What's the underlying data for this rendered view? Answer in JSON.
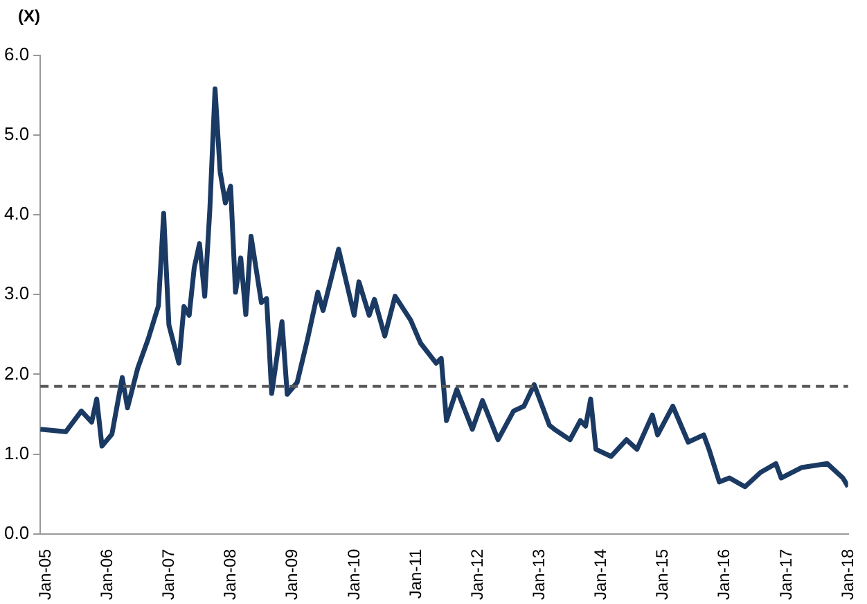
{
  "chart_data": {
    "type": "line",
    "ylabel": "(X)",
    "x": [
      "2005-01",
      "2005-06",
      "2005-09",
      "2005-11",
      "2005-12",
      "2006-01",
      "2006-03",
      "2006-05",
      "2006-06",
      "2006-08",
      "2006-10",
      "2006-12",
      "2007-01",
      "2007-02",
      "2007-04",
      "2007-05",
      "2007-06",
      "2007-07",
      "2007-08",
      "2007-09",
      "2007-10",
      "2007-11",
      "2007-12",
      "2008-01",
      "2008-02",
      "2008-03",
      "2008-04",
      "2008-05",
      "2008-06",
      "2008-08",
      "2008-09",
      "2008-10",
      "2008-12",
      "2009-01",
      "2009-03",
      "2009-05",
      "2009-07",
      "2009-08",
      "2009-11",
      "2010-02",
      "2010-03",
      "2010-05",
      "2010-06",
      "2010-08",
      "2010-10",
      "2011-01",
      "2011-03",
      "2011-06",
      "2011-07",
      "2011-08",
      "2011-10",
      "2012-01",
      "2012-03",
      "2012-06",
      "2012-09",
      "2012-11",
      "2013-01",
      "2013-04",
      "2013-05",
      "2013-08",
      "2013-10",
      "2013-11",
      "2013-12",
      "2014-01",
      "2014-04",
      "2014-07",
      "2014-09",
      "2014-12",
      "2015-01",
      "2015-04",
      "2015-07",
      "2015-10",
      "2015-11",
      "2016-01",
      "2016-03",
      "2016-06",
      "2016-09",
      "2016-12",
      "2017-01",
      "2017-05",
      "2017-10",
      "2018-01",
      "2018-02"
    ],
    "series": [
      {
        "color": "#1b3a63",
        "values": [
          1.31,
          1.28,
          1.54,
          1.4,
          1.69,
          1.1,
          1.25,
          1.96,
          1.58,
          2.08,
          2.44,
          2.86,
          4.02,
          2.62,
          2.14,
          2.85,
          2.74,
          3.34,
          3.64,
          2.98,
          4.06,
          5.58,
          4.54,
          4.15,
          4.36,
          3.03,
          3.46,
          2.75,
          3.73,
          2.9,
          2.95,
          1.76,
          2.66,
          1.75,
          1.9,
          2.44,
          3.03,
          2.8,
          3.57,
          2.74,
          3.16,
          2.74,
          2.94,
          2.48,
          2.98,
          2.68,
          2.39,
          2.14,
          2.2,
          1.42,
          1.81,
          1.31,
          1.67,
          1.18,
          1.54,
          1.6,
          1.87,
          1.36,
          1.31,
          1.18,
          1.42,
          1.35,
          1.69,
          1.06,
          0.97,
          1.18,
          1.06,
          1.49,
          1.24,
          1.6,
          1.15,
          1.24,
          1.06,
          0.65,
          0.7,
          0.59,
          0.77,
          0.88,
          0.7,
          0.83,
          0.88,
          0.7,
          0.59
        ]
      }
    ],
    "xlim": [
      "2005-01",
      "2018-02"
    ],
    "xticks": [
      {
        "value": "2005-01",
        "label": "Jan-05"
      },
      {
        "value": "2006-01",
        "label": "Jan-06"
      },
      {
        "value": "2007-01",
        "label": "Jan-07"
      },
      {
        "value": "2008-01",
        "label": "Jan-08"
      },
      {
        "value": "2009-01",
        "label": "Jan-09"
      },
      {
        "value": "2010-01",
        "label": "Jan-10"
      },
      {
        "value": "2011-01",
        "label": "Jan-11"
      },
      {
        "value": "2012-01",
        "label": "Jan-12"
      },
      {
        "value": "2013-01",
        "label": "Jan-13"
      },
      {
        "value": "2014-01",
        "label": "Jan-14"
      },
      {
        "value": "2015-01",
        "label": "Jan-15"
      },
      {
        "value": "2016-01",
        "label": "Jan-16"
      },
      {
        "value": "2017-01",
        "label": "Jan-17"
      },
      {
        "value": "2018-01",
        "label": "Jan-18"
      }
    ],
    "ylim": [
      0,
      6
    ],
    "yticks": [
      {
        "value": 0,
        "label": "0.0"
      },
      {
        "value": 1,
        "label": "1.0"
      },
      {
        "value": 2,
        "label": "2.0"
      },
      {
        "value": 3,
        "label": "3.0"
      },
      {
        "value": 4,
        "label": "4.0"
      },
      {
        "value": 5,
        "label": "5.0"
      },
      {
        "value": 6,
        "label": "6.0"
      }
    ],
    "ref_lines": [
      {
        "axis": "y",
        "value": 1.85,
        "color": "#595959",
        "line_style": "dashed"
      }
    ],
    "grid": false,
    "legend": false,
    "marker": "none",
    "line_style": "solid"
  }
}
